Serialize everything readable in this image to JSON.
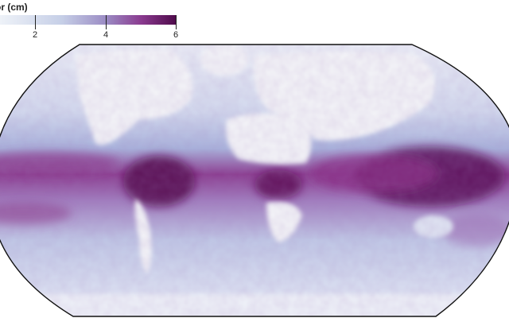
{
  "legend": {
    "title": "apor (cm)",
    "ticks": [
      {
        "label": "2",
        "value": 2
      },
      {
        "label": "4",
        "value": 4
      },
      {
        "label": "6",
        "value": 6
      }
    ],
    "range": [
      0,
      6
    ],
    "colors": {
      "low": "#eef1f8",
      "mid": "#9aa6d2",
      "high": "#5a0a55"
    }
  },
  "map": {
    "projection": "robinson-like",
    "land_color": "#f3f4f7",
    "ocean_low": "#d7def0",
    "ocean_mid": "#b8c3e3",
    "tropical": "#8b2f8a",
    "deep": "#5a0a55"
  }
}
